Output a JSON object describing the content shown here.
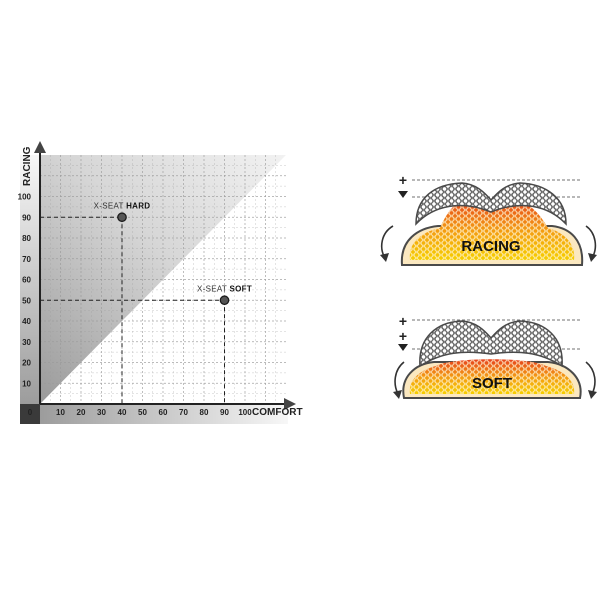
{
  "chart_data": {
    "type": "scatter",
    "xlabel": "COMFORT",
    "ylabel": "RACING",
    "xlim": [
      0,
      120
    ],
    "ylim": [
      0,
      120
    ],
    "origin_label": "0",
    "x_ticks": [
      10,
      20,
      30,
      40,
      50,
      60,
      70,
      80,
      90,
      100
    ],
    "y_ticks": [
      10,
      20,
      30,
      40,
      50,
      60,
      70,
      80,
      90,
      100
    ],
    "grid": true,
    "points": [
      {
        "prefix": "X-SEAT",
        "name": "HARD",
        "x": 40,
        "y": 90
      },
      {
        "prefix": "X-SEAT",
        "name": "SOFT",
        "x": 90,
        "y": 50
      }
    ]
  },
  "diagrams": [
    {
      "label": "RACING",
      "signs": [
        "+",
        "-"
      ]
    },
    {
      "label": "SOFT",
      "signs": [
        "+",
        "+",
        "-"
      ]
    }
  ],
  "colors": {
    "point": "#555555",
    "foam_top": "#f2c200",
    "foam_hot": "#e8451f"
  }
}
